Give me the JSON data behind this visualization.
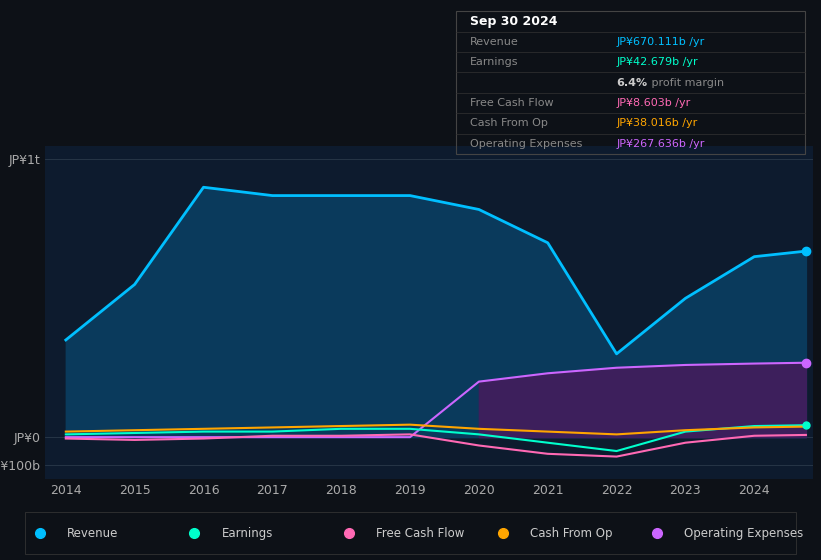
{
  "background_color": "#0d1117",
  "plot_bg_color": "#0d1b2e",
  "years": [
    2014,
    2015,
    2016,
    2017,
    2018,
    2019,
    2020,
    2021,
    2022,
    2023,
    2024,
    2024.75
  ],
  "revenue": [
    350,
    550,
    900,
    870,
    870,
    870,
    820,
    700,
    300,
    500,
    650,
    670
  ],
  "earnings": [
    10,
    15,
    20,
    20,
    30,
    30,
    10,
    -20,
    -50,
    20,
    40,
    43
  ],
  "free_cash_flow": [
    -5,
    -10,
    -5,
    5,
    5,
    10,
    -30,
    -60,
    -70,
    -20,
    5,
    8
  ],
  "cash_from_op": [
    20,
    25,
    30,
    35,
    40,
    45,
    30,
    20,
    10,
    25,
    35,
    38
  ],
  "operating_expenses": [
    0,
    0,
    0,
    0,
    0,
    0,
    200,
    230,
    250,
    260,
    265,
    268
  ],
  "revenue_color": "#00bfff",
  "earnings_color": "#00ffcc",
  "free_cash_flow_color": "#ff69b4",
  "cash_from_op_color": "#ffa500",
  "operating_expenses_color": "#cc66ff",
  "revenue_fill_color": "#0a3a5c",
  "operating_expenses_fill_color": "#3d1f5c",
  "yticks_labels": [
    "JP¥1t",
    "JP¥0",
    "-JP¥100b"
  ],
  "yticks_values": [
    1000,
    0,
    -100
  ],
  "xlabel_years": [
    2014,
    2015,
    2016,
    2017,
    2018,
    2019,
    2020,
    2021,
    2022,
    2023,
    2024
  ],
  "legend_items": [
    {
      "label": "Revenue",
      "color": "#00bfff"
    },
    {
      "label": "Earnings",
      "color": "#00ffcc"
    },
    {
      "label": "Free Cash Flow",
      "color": "#ff69b4"
    },
    {
      "label": "Cash From Op",
      "color": "#ffa500"
    },
    {
      "label": "Operating Expenses",
      "color": "#cc66ff"
    }
  ],
  "info_rows": [
    {
      "label": "Sep 30 2024",
      "value": "",
      "label_color": "#ffffff",
      "value_color": "#ffffff",
      "header": true
    },
    {
      "label": "Revenue",
      "value": "JP¥670.111b /yr",
      "label_color": "#888888",
      "value_color": "#00bfff",
      "header": false
    },
    {
      "label": "Earnings",
      "value": "JP¥42.679b /yr",
      "label_color": "#888888",
      "value_color": "#00ffcc",
      "header": false
    },
    {
      "label": "",
      "value": "6.4% profit margin",
      "label_color": "#888888",
      "value_color": "#aaaaaa",
      "header": false,
      "special": true
    },
    {
      "label": "Free Cash Flow",
      "value": "JP¥8.603b /yr",
      "label_color": "#888888",
      "value_color": "#ff69b4",
      "header": false
    },
    {
      "label": "Cash From Op",
      "value": "JP¥38.016b /yr",
      "label_color": "#888888",
      "value_color": "#ffa500",
      "header": false
    },
    {
      "label": "Operating Expenses",
      "value": "JP¥267.636b /yr",
      "label_color": "#888888",
      "value_color": "#cc66ff",
      "header": false
    }
  ]
}
